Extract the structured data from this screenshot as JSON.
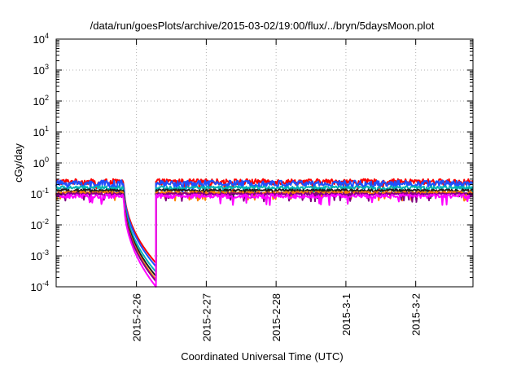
{
  "chart_data": {
    "type": "line",
    "title": "/data/run/goesPlots/archive/2015-03-02/19:00/flux/../bryn/5daysMoon.plot",
    "xlabel": "Coordinated Universal Time (UTC)",
    "ylabel": "cGy/day",
    "x_range_days": [
      -1.15,
      4.82
    ],
    "x_ticks": [
      {
        "day": 0,
        "label": "2015-2-26"
      },
      {
        "day": 1,
        "label": "2015-2-27"
      },
      {
        "day": 2,
        "label": "2015-2-28"
      },
      {
        "day": 3,
        "label": "2015-3-1"
      },
      {
        "day": 4,
        "label": "2015-3-2"
      }
    ],
    "y_scale": "log",
    "ylim": [
      0.0001,
      10000
    ],
    "y_ticks": [
      {
        "base": "10",
        "exp": "-4"
      },
      {
        "base": "10",
        "exp": "-3"
      },
      {
        "base": "10",
        "exp": "-2"
      },
      {
        "base": "10",
        "exp": "-1"
      },
      {
        "base": "10",
        "exp": "0"
      },
      {
        "base": "10",
        "exp": "1"
      },
      {
        "base": "10",
        "exp": "2"
      },
      {
        "base": "10",
        "exp": "3"
      },
      {
        "base": "10",
        "exp": "4"
      }
    ],
    "grid": true,
    "gap_days": [
      -0.18,
      0.28
    ],
    "series": [
      {
        "color": "#ff0000",
        "level": 0.25,
        "floor_end": 0.00058,
        "noise": 0.07
      },
      {
        "color": "#1f4fff",
        "level": 0.22,
        "floor_end": 0.00045,
        "noise": 0.08
      },
      {
        "color": "#00b3b3",
        "level": 0.16,
        "floor_end": 0.0003,
        "noise": 0.04
      },
      {
        "color": "#202020",
        "level": 0.13,
        "floor_end": 0.00022,
        "noise": 0.03
      },
      {
        "color": "#ff7f00",
        "level": 0.11,
        "floor_end": 0.00017,
        "noise": 0.03
      },
      {
        "color": "#800080",
        "level": 0.1,
        "floor_end": 0.00015,
        "noise": 0.03
      },
      {
        "color": "#ff00ff",
        "level": 0.085,
        "floor_end": 0.0001,
        "noise": 0.05
      }
    ]
  }
}
